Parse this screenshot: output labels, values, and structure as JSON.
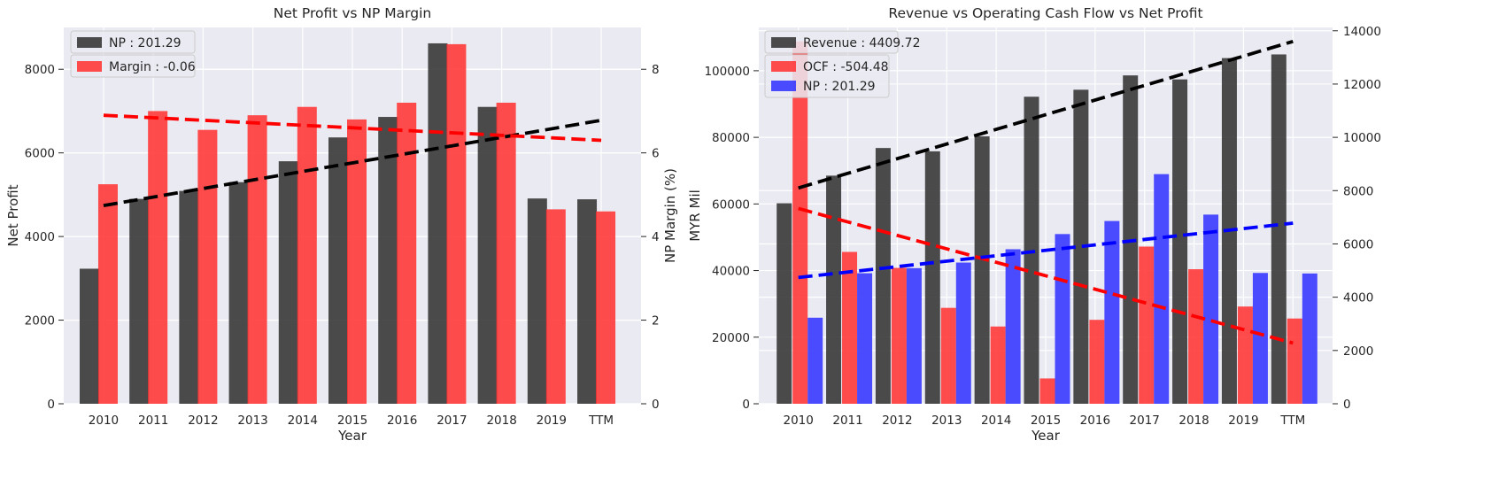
{
  "chart_data": [
    {
      "type": "bar",
      "title": "Net Profit vs NP Margin",
      "xlabel": "Year",
      "ylabel": "Net Profit",
      "ylabel_right": "NP Margin (%)",
      "categories": [
        "2010",
        "2011",
        "2012",
        "2013",
        "2014",
        "2015",
        "2016",
        "2017",
        "2018",
        "2019",
        "TTM"
      ],
      "ylim": [
        0,
        9000
      ],
      "ylim_right": [
        0,
        9
      ],
      "yticks": [
        0,
        2000,
        4000,
        6000,
        8000
      ],
      "yticks_right": [
        0,
        2,
        4,
        6,
        8
      ],
      "grid": true,
      "legend_position": "top-left",
      "series": [
        {
          "name": "NP : 201.29",
          "axis": "left",
          "color": "#333333",
          "values": [
            3230,
            4900,
            5090,
            5300,
            5800,
            6370,
            6860,
            8620,
            7100,
            4910,
            4890
          ],
          "trend": [
            4740,
            6780
          ]
        },
        {
          "name": "Margin : -0.06",
          "axis": "right",
          "color": "#ff3333",
          "values": [
            5.25,
            7.0,
            6.55,
            6.9,
            7.1,
            6.8,
            7.2,
            8.6,
            7.2,
            4.65,
            4.6
          ],
          "trend": [
            6.9,
            6.3
          ]
        }
      ]
    },
    {
      "type": "bar",
      "title": "Revenue vs Operating Cash Flow vs Net Profit",
      "xlabel": "Year",
      "ylabel": "MYR Mil",
      "ylabel_right": "",
      "categories": [
        "2010",
        "2011",
        "2012",
        "2013",
        "2014",
        "2015",
        "2016",
        "2017",
        "2018",
        "2019",
        "TTM"
      ],
      "ylim": [
        0,
        113000
      ],
      "ylim_right": [
        0,
        14125
      ],
      "yticks": [
        0,
        20000,
        40000,
        60000,
        80000,
        100000
      ],
      "yticks_right": [
        0,
        2000,
        4000,
        6000,
        8000,
        10000,
        12000,
        14000
      ],
      "grid": true,
      "legend_position": "top-left",
      "series": [
        {
          "name": "Revenue : 4409.72",
          "axis": "left",
          "color": "#333333",
          "values": [
            60200,
            68500,
            76800,
            75800,
            80300,
            92200,
            94300,
            98600,
            97400,
            103800,
            104900
          ],
          "trend": [
            64800,
            108800
          ]
        },
        {
          "name": "OCF : -504.48",
          "axis": "right",
          "color": "#ff3333",
          "values": [
            13600,
            5700,
            5100,
            3600,
            2900,
            950,
            3150,
            5900,
            5050,
            3650,
            3200
          ],
          "trend": [
            7330,
            2280
          ]
        },
        {
          "name": "NP : 201.29",
          "axis": "right",
          "color": "#3333ff",
          "values": [
            3230,
            4900,
            5090,
            5300,
            5800,
            6370,
            6860,
            8620,
            7100,
            4910,
            4890
          ],
          "trend": [
            4740,
            6780
          ]
        }
      ]
    }
  ]
}
